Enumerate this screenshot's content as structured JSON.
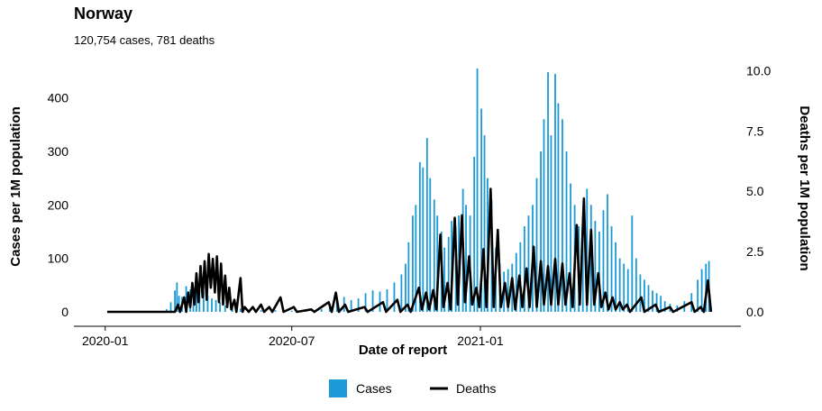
{
  "chart_data": {
    "type": "bar+line",
    "title": "Norway",
    "subtitle": "120,754 cases, 781 deaths",
    "xlabel": "Date of report",
    "ylabel_left": "Cases per 1M population",
    "ylabel_right": "Deaths per 1M population",
    "x_range": [
      "2020-01-03",
      "2021-08-15"
    ],
    "x_ticks": [
      {
        "date": "2020-01-01",
        "label": "2020-01"
      },
      {
        "date": "2020-07-01",
        "label": "2020-07"
      },
      {
        "date": "2021-01-01",
        "label": "2021-01"
      }
    ],
    "ylim_left": [
      0,
      460
    ],
    "yticks_left": [
      {
        "value": 0,
        "label": "0"
      },
      {
        "value": 100,
        "label": "100"
      },
      {
        "value": 200,
        "label": "200"
      },
      {
        "value": 300,
        "label": "300"
      },
      {
        "value": 400,
        "label": "400"
      }
    ],
    "ylim_right": [
      0,
      10.2
    ],
    "yticks_right": [
      {
        "value": 0,
        "label": "0.0"
      },
      {
        "value": 2.5,
        "label": "2.5"
      },
      {
        "value": 5,
        "label": "5.0"
      },
      {
        "value": 7.5,
        "label": "7.5"
      },
      {
        "value": 10,
        "label": "10.0"
      }
    ],
    "legend": {
      "placement": "bottom-center",
      "items": [
        {
          "label": "Cases",
          "color": "#1a9ad6",
          "kind": "bar"
        },
        {
          "label": "Deaths",
          "color": "#000000",
          "kind": "line"
        }
      ]
    },
    "grid": false,
    "series": [
      {
        "name": "Cases",
        "kind": "bar",
        "color": "#1a9ad6",
        "points": [
          [
            "2020-03-01",
            5
          ],
          [
            "2020-03-05",
            18
          ],
          [
            "2020-03-09",
            40
          ],
          [
            "2020-03-11",
            55
          ],
          [
            "2020-03-13",
            30
          ],
          [
            "2020-03-16",
            28
          ],
          [
            "2020-03-20",
            48
          ],
          [
            "2020-03-24",
            42
          ],
          [
            "2020-03-27",
            45
          ],
          [
            "2020-03-30",
            60
          ],
          [
            "2020-04-02",
            40
          ],
          [
            "2020-04-06",
            38
          ],
          [
            "2020-04-10",
            30
          ],
          [
            "2020-04-14",
            25
          ],
          [
            "2020-04-18",
            22
          ],
          [
            "2020-04-22",
            18
          ],
          [
            "2020-04-27",
            12
          ],
          [
            "2020-05-04",
            8
          ],
          [
            "2020-05-12",
            6
          ],
          [
            "2020-05-20",
            4
          ],
          [
            "2020-06-01",
            3
          ],
          [
            "2020-06-15",
            3
          ],
          [
            "2020-07-01",
            2
          ],
          [
            "2020-07-15",
            3
          ],
          [
            "2020-07-30",
            5
          ],
          [
            "2020-08-07",
            15
          ],
          [
            "2020-08-14",
            25
          ],
          [
            "2020-08-21",
            28
          ],
          [
            "2020-08-28",
            22
          ],
          [
            "2020-09-04",
            25
          ],
          [
            "2020-09-11",
            35
          ],
          [
            "2020-09-18",
            40
          ],
          [
            "2020-09-25",
            38
          ],
          [
            "2020-10-02",
            42
          ],
          [
            "2020-10-09",
            55
          ],
          [
            "2020-10-16",
            70
          ],
          [
            "2020-10-20",
            90
          ],
          [
            "2020-10-23",
            130
          ],
          [
            "2020-10-27",
            180
          ],
          [
            "2020-10-30",
            200
          ],
          [
            "2020-11-03",
            280
          ],
          [
            "2020-11-06",
            270
          ],
          [
            "2020-11-10",
            325
          ],
          [
            "2020-11-13",
            250
          ],
          [
            "2020-11-17",
            210
          ],
          [
            "2020-11-20",
            180
          ],
          [
            "2020-11-24",
            150
          ],
          [
            "2020-11-27",
            120
          ],
          [
            "2020-12-01",
            140
          ],
          [
            "2020-12-04",
            170
          ],
          [
            "2020-12-08",
            160
          ],
          [
            "2020-12-11",
            180
          ],
          [
            "2020-12-15",
            230
          ],
          [
            "2020-12-18",
            200
          ],
          [
            "2020-12-22",
            180
          ],
          [
            "2020-12-26",
            290
          ],
          [
            "2020-12-29",
            455
          ],
          [
            "2021-01-02",
            380
          ],
          [
            "2021-01-05",
            330
          ],
          [
            "2021-01-08",
            250
          ],
          [
            "2021-01-12",
            210
          ],
          [
            "2021-01-16",
            120
          ],
          [
            "2021-01-20",
            90
          ],
          [
            "2021-01-24",
            75
          ],
          [
            "2021-01-28",
            80
          ],
          [
            "2021-02-01",
            90
          ],
          [
            "2021-02-05",
            110
          ],
          [
            "2021-02-09",
            130
          ],
          [
            "2021-02-13",
            160
          ],
          [
            "2021-02-17",
            180
          ],
          [
            "2021-02-21",
            200
          ],
          [
            "2021-02-25",
            250
          ],
          [
            "2021-03-01",
            300
          ],
          [
            "2021-03-04",
            360
          ],
          [
            "2021-03-08",
            448
          ],
          [
            "2021-03-11",
            330
          ],
          [
            "2021-03-15",
            445
          ],
          [
            "2021-03-18",
            390
          ],
          [
            "2021-03-22",
            360
          ],
          [
            "2021-03-26",
            300
          ],
          [
            "2021-03-30",
            240
          ],
          [
            "2021-04-03",
            200
          ],
          [
            "2021-04-07",
            160
          ],
          [
            "2021-04-11",
            180
          ],
          [
            "2021-04-15",
            230
          ],
          [
            "2021-04-19",
            200
          ],
          [
            "2021-04-23",
            170
          ],
          [
            "2021-04-27",
            150
          ],
          [
            "2021-05-01",
            190
          ],
          [
            "2021-05-05",
            220
          ],
          [
            "2021-05-09",
            160
          ],
          [
            "2021-05-13",
            130
          ],
          [
            "2021-05-17",
            100
          ],
          [
            "2021-05-21",
            90
          ],
          [
            "2021-05-25",
            80
          ],
          [
            "2021-05-29",
            180
          ],
          [
            "2021-06-02",
            100
          ],
          [
            "2021-06-06",
            70
          ],
          [
            "2021-06-10",
            60
          ],
          [
            "2021-06-14",
            50
          ],
          [
            "2021-06-18",
            40
          ],
          [
            "2021-06-22",
            35
          ],
          [
            "2021-06-26",
            30
          ],
          [
            "2021-06-30",
            20
          ],
          [
            "2021-07-05",
            15
          ],
          [
            "2021-07-12",
            12
          ],
          [
            "2021-07-19",
            20
          ],
          [
            "2021-07-26",
            35
          ],
          [
            "2021-08-01",
            60
          ],
          [
            "2021-08-05",
            80
          ],
          [
            "2021-08-09",
            90
          ],
          [
            "2021-08-12",
            95
          ]
        ]
      },
      {
        "name": "Deaths",
        "kind": "line",
        "color": "#000000",
        "points": [
          [
            "2020-01-03",
            0
          ],
          [
            "2020-03-09",
            0
          ],
          [
            "2020-03-12",
            0.3
          ],
          [
            "2020-03-14",
            0
          ],
          [
            "2020-03-18",
            0.6
          ],
          [
            "2020-03-20",
            0
          ],
          [
            "2020-03-22",
            0.8
          ],
          [
            "2020-03-24",
            0.2
          ],
          [
            "2020-03-26",
            1.2
          ],
          [
            "2020-03-28",
            0.3
          ],
          [
            "2020-03-30",
            1.6
          ],
          [
            "2020-04-01",
            0.4
          ],
          [
            "2020-04-03",
            1.9
          ],
          [
            "2020-04-05",
            0.6
          ],
          [
            "2020-04-07",
            2.1
          ],
          [
            "2020-04-09",
            0.5
          ],
          [
            "2020-04-11",
            2.4
          ],
          [
            "2020-04-13",
            1.0
          ],
          [
            "2020-04-15",
            2.2
          ],
          [
            "2020-04-17",
            0.8
          ],
          [
            "2020-04-19",
            2.3
          ],
          [
            "2020-04-21",
            0.4
          ],
          [
            "2020-04-23",
            2.0
          ],
          [
            "2020-04-25",
            0.3
          ],
          [
            "2020-04-27",
            1.5
          ],
          [
            "2020-04-29",
            0.2
          ],
          [
            "2020-05-01",
            1.0
          ],
          [
            "2020-05-03",
            0.1
          ],
          [
            "2020-05-06",
            0.5
          ],
          [
            "2020-05-08",
            0
          ],
          [
            "2020-05-12",
            1.4
          ],
          [
            "2020-05-14",
            0
          ],
          [
            "2020-05-16",
            0.2
          ],
          [
            "2020-05-20",
            0
          ],
          [
            "2020-05-24",
            0.2
          ],
          [
            "2020-05-27",
            0
          ],
          [
            "2020-06-01",
            0.3
          ],
          [
            "2020-06-04",
            0
          ],
          [
            "2020-06-09",
            0.2
          ],
          [
            "2020-06-12",
            0
          ],
          [
            "2020-06-20",
            0.6
          ],
          [
            "2020-06-23",
            0
          ],
          [
            "2020-07-03",
            0.2
          ],
          [
            "2020-07-06",
            0
          ],
          [
            "2020-07-20",
            0.1
          ],
          [
            "2020-07-23",
            0
          ],
          [
            "2020-08-06",
            0.4
          ],
          [
            "2020-08-09",
            0
          ],
          [
            "2020-08-13",
            0.8
          ],
          [
            "2020-08-16",
            0
          ],
          [
            "2020-08-22",
            0.3
          ],
          [
            "2020-08-25",
            0
          ],
          [
            "2020-09-10",
            0.2
          ],
          [
            "2020-09-13",
            0
          ],
          [
            "2020-09-28",
            0.4
          ],
          [
            "2020-10-01",
            0
          ],
          [
            "2020-10-12",
            0.5
          ],
          [
            "2020-10-15",
            0
          ],
          [
            "2020-10-22",
            0.3
          ],
          [
            "2020-10-25",
            0
          ],
          [
            "2020-11-02",
            1.0
          ],
          [
            "2020-11-05",
            0.1
          ],
          [
            "2020-11-09",
            0.8
          ],
          [
            "2020-11-12",
            0.1
          ],
          [
            "2020-11-16",
            0.9
          ],
          [
            "2020-11-19",
            0.1
          ],
          [
            "2020-11-23",
            3.2
          ],
          [
            "2020-11-26",
            0.2
          ],
          [
            "2020-11-30",
            1.2
          ],
          [
            "2020-12-03",
            0.1
          ],
          [
            "2020-12-07",
            3.9
          ],
          [
            "2020-12-10",
            0.3
          ],
          [
            "2020-12-14",
            4.0
          ],
          [
            "2020-12-17",
            0.4
          ],
          [
            "2020-12-21",
            2.3
          ],
          [
            "2020-12-24",
            0.3
          ],
          [
            "2020-12-28",
            1.0
          ],
          [
            "2020-12-31",
            0.2
          ],
          [
            "2021-01-04",
            2.6
          ],
          [
            "2021-01-07",
            0.2
          ],
          [
            "2021-01-11",
            5.1
          ],
          [
            "2021-01-14",
            0.2
          ],
          [
            "2021-01-18",
            3.4
          ],
          [
            "2021-01-21",
            0.2
          ],
          [
            "2021-01-25",
            1.2
          ],
          [
            "2021-01-28",
            0.2
          ],
          [
            "2021-02-01",
            1.4
          ],
          [
            "2021-02-04",
            0.1
          ],
          [
            "2021-02-08",
            1.5
          ],
          [
            "2021-02-11",
            0.2
          ],
          [
            "2021-02-15",
            1.8
          ],
          [
            "2021-02-18",
            0.2
          ],
          [
            "2021-02-22",
            2.7
          ],
          [
            "2021-02-25",
            0.2
          ],
          [
            "2021-03-01",
            2.1
          ],
          [
            "2021-03-04",
            0.3
          ],
          [
            "2021-03-08",
            1.9
          ],
          [
            "2021-03-11",
            0.3
          ],
          [
            "2021-03-15",
            2.2
          ],
          [
            "2021-03-18",
            0.3
          ],
          [
            "2021-03-22",
            2.0
          ],
          [
            "2021-03-25",
            0.3
          ],
          [
            "2021-03-29",
            1.6
          ],
          [
            "2021-04-01",
            0.2
          ],
          [
            "2021-04-05",
            3.6
          ],
          [
            "2021-04-08",
            0.3
          ],
          [
            "2021-04-12",
            4.7
          ],
          [
            "2021-04-15",
            0.3
          ],
          [
            "2021-04-19",
            3.4
          ],
          [
            "2021-04-22",
            0.3
          ],
          [
            "2021-04-26",
            1.6
          ],
          [
            "2021-04-29",
            0.2
          ],
          [
            "2021-05-03",
            0.8
          ],
          [
            "2021-05-06",
            0.1
          ],
          [
            "2021-05-10",
            0.6
          ],
          [
            "2021-05-13",
            0.1
          ],
          [
            "2021-05-17",
            0.4
          ],
          [
            "2021-05-20",
            0.1
          ],
          [
            "2021-05-24",
            0.3
          ],
          [
            "2021-05-27",
            0
          ],
          [
            "2021-06-07",
            0.6
          ],
          [
            "2021-06-10",
            0
          ],
          [
            "2021-06-21",
            0.3
          ],
          [
            "2021-06-24",
            0
          ],
          [
            "2021-07-05",
            0.2
          ],
          [
            "2021-07-08",
            0
          ],
          [
            "2021-07-26",
            0.4
          ],
          [
            "2021-07-29",
            0
          ],
          [
            "2021-08-04",
            0.2
          ],
          [
            "2021-08-07",
            0
          ],
          [
            "2021-08-11",
            1.3
          ],
          [
            "2021-08-14",
            0
          ]
        ]
      }
    ]
  }
}
